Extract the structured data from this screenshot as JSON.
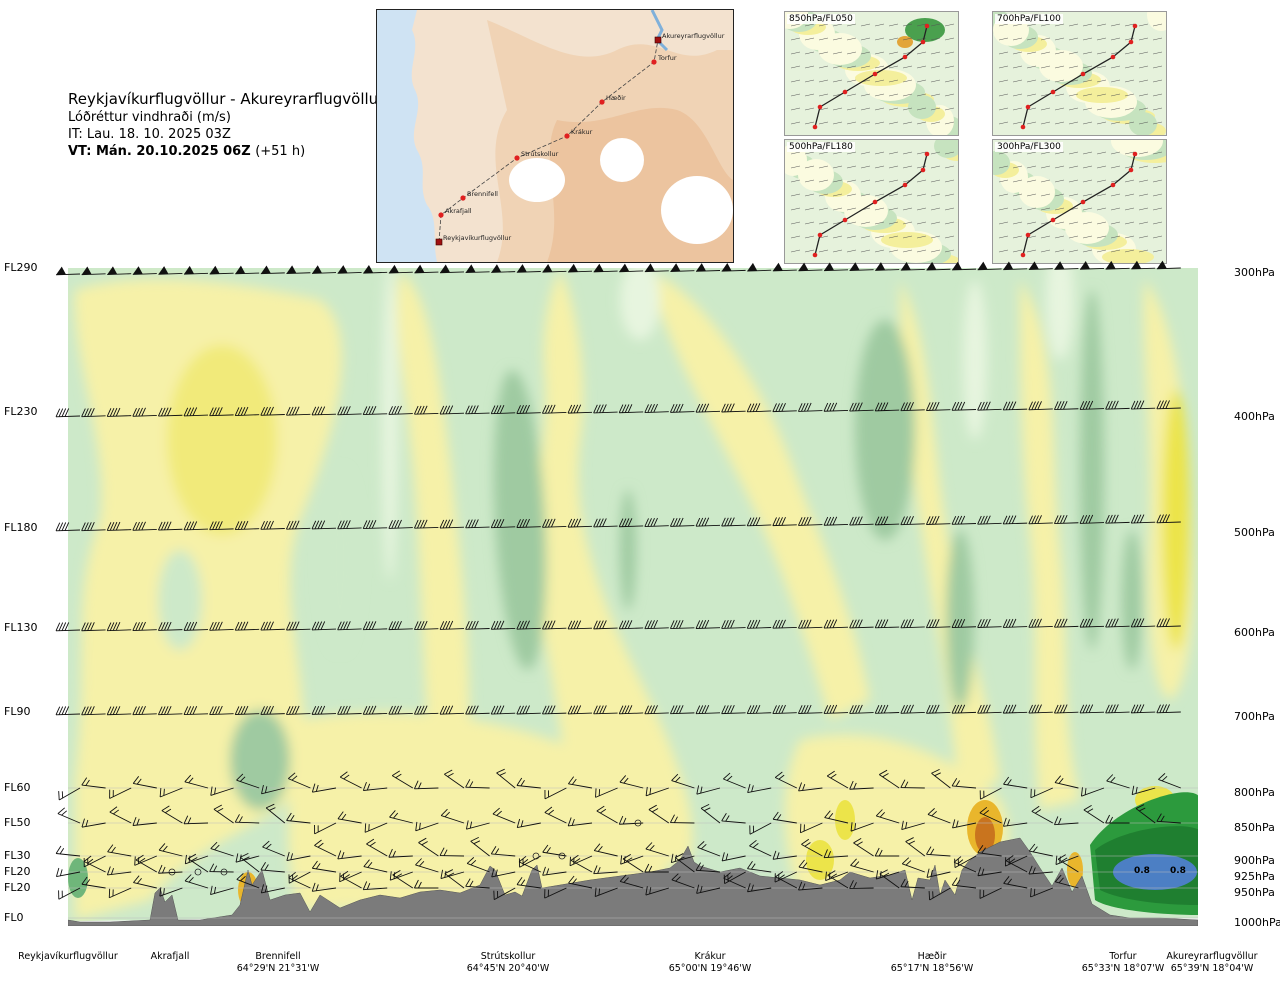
{
  "header": {
    "route": "Reykjavíkurflugvöllur - Akureyrarflugvöllur",
    "subtitle": "Lóðréttur vindhraði (m/s)",
    "it": "IT: Lau. 18. 10. 2025 03Z",
    "vt_bold": "VT: Mán. 20.10.2025 06Z",
    "vt_rest": "(+51 h)"
  },
  "map": {
    "points": [
      "Akureyrarflugvöllur",
      "Torfur",
      "Hæðir",
      "Krákur",
      "Strútskollur",
      "Brennifell",
      "Akrafjall",
      "Reykjavíkurflugvöllur"
    ]
  },
  "thumbnails": [
    {
      "label": "850hPa/FL050"
    },
    {
      "label": "700hPa/FL100"
    },
    {
      "label": "500hPa/FL180"
    },
    {
      "label": "300hPa/FL300"
    }
  ],
  "chart_data": {
    "type": "heatmap",
    "title": "Lóðréttur vindhraði (m/s)",
    "levels": [
      {
        "fl": "FL290",
        "hpa": "300hPa"
      },
      {
        "fl": "FL230",
        "hpa": "400hPa"
      },
      {
        "fl": "FL180",
        "hpa": "500hPa"
      },
      {
        "fl": "FL130",
        "hpa": "600hPa"
      },
      {
        "fl": "FL90",
        "hpa": "700hPa"
      },
      {
        "fl": "FL60",
        "hpa": "800hPa"
      },
      {
        "fl": "FL50",
        "hpa": "850hPa"
      },
      {
        "fl": "FL30",
        "hpa": "900hPa"
      },
      {
        "fl": "FL20",
        "hpa": "925hPa"
      },
      {
        "fl": "FL20",
        "hpa": "950hPa"
      },
      {
        "fl": "FL0",
        "hpa": "1000hPa"
      }
    ],
    "locations": [
      {
        "name": "Reykjavíkurflugvöllur",
        "coord": ""
      },
      {
        "name": "Akrafjall",
        "coord": ""
      },
      {
        "name": "Brennifell",
        "coord": "64°29'N 21°31'W"
      },
      {
        "name": "Strútskollur",
        "coord": "64°45'N 20°40'W"
      },
      {
        "name": "Krákur",
        "coord": "65°00'N 19°46'W"
      },
      {
        "name": "Hæðir",
        "coord": "65°17'N 18°56'W"
      },
      {
        "name": "Torfur",
        "coord": "65°33'N 18°07'W"
      },
      {
        "name": "Akureyrarflugvöllur",
        "coord": "65°39'N 18°04'W"
      }
    ],
    "annotations": [
      "0.8",
      "0.8"
    ],
    "colors": {
      "strong_down": "#9fcaa1",
      "down": "#cde9c9",
      "weak_down": "#e7f5df",
      "neutral": "#fbfbe8",
      "weak_up": "#f6f1a8",
      "up": "#ece44a",
      "strong_up": "#e9b62c",
      "peak_up": "#c9741e",
      "deep_green": "#2c9a3d",
      "blue": "#4c7fc4",
      "terrain": "#7b7b7b"
    }
  }
}
